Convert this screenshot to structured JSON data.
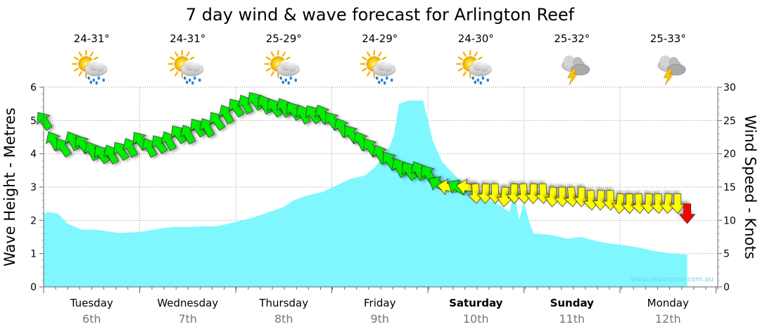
{
  "chart_data": {
    "type": "area",
    "title": "7 day wind & wave forecast for Arlington Reef",
    "ylabel_left": "Wave Height - Metres",
    "ylabel_right": "Wind Speed - Knots",
    "y_left_range": [
      0,
      6
    ],
    "y_right_range": [
      0,
      30
    ],
    "y_left_ticks": [
      "0",
      "1",
      "2",
      "3",
      "4",
      "5",
      "6"
    ],
    "y_right_ticks": [
      "0",
      "5",
      "10",
      "15",
      "20",
      "25",
      "30"
    ],
    "grid": true,
    "days": [
      {
        "name": "Tuesday",
        "date": "6th",
        "bold": false,
        "temp": "24-31°",
        "weather": "partly-cloudy-rain-icon"
      },
      {
        "name": "Wednesday",
        "date": "7th",
        "bold": false,
        "temp": "24-31°",
        "weather": "partly-cloudy-rain-icon"
      },
      {
        "name": "Thursday",
        "date": "8th",
        "bold": false,
        "temp": "25-29°",
        "weather": "partly-cloudy-rain-icon"
      },
      {
        "name": "Friday",
        "date": "9th",
        "bold": false,
        "temp": "24-29°",
        "weather": "partly-cloudy-rain-icon"
      },
      {
        "name": "Saturday",
        "date": "10th",
        "bold": true,
        "temp": "24-30°",
        "weather": "partly-cloudy-rain-icon"
      },
      {
        "name": "Sunday",
        "date": "11th",
        "bold": true,
        "temp": "25-32°",
        "weather": "thunderstorm-icon"
      },
      {
        "name": "Monday",
        "date": "12th",
        "bold": false,
        "temp": "25-33°",
        "weather": "thunderstorm-icon"
      }
    ],
    "wave_series": {
      "name": "Wave Height",
      "x_days": [
        0,
        0.05,
        0.15,
        0.25,
        0.4,
        0.55,
        0.7,
        0.8,
        1.0,
        1.2,
        1.35,
        1.5,
        1.65,
        1.8,
        2.0,
        2.2,
        2.35,
        2.5,
        2.6,
        2.75,
        2.9,
        3.05,
        3.2,
        3.35,
        3.45,
        3.55,
        3.6,
        3.65,
        3.7,
        3.8,
        3.9,
        3.95,
        4.0,
        4.05,
        4.15,
        4.3,
        4.45,
        4.6,
        4.75,
        4.8,
        4.85,
        4.9,
        4.95,
        5.0,
        5.05,
        5.1,
        5.15,
        5.3,
        5.45,
        5.6,
        5.75,
        5.9,
        6.05,
        6.2,
        6.35,
        6.55,
        6.7
      ],
      "heights": [
        2.2,
        2.25,
        2.2,
        1.9,
        1.72,
        1.72,
        1.65,
        1.62,
        1.65,
        1.75,
        1.8,
        1.8,
        1.82,
        1.82,
        1.95,
        2.1,
        2.25,
        2.4,
        2.6,
        2.75,
        2.85,
        3.05,
        3.25,
        3.35,
        3.6,
        4.0,
        4.2,
        4.6,
        5.5,
        5.6,
        5.6,
        5.6,
        5.0,
        4.4,
        3.75,
        3.3,
        2.95,
        2.65,
        2.45,
        2.35,
        2.25,
        2.9,
        2.0,
        2.6,
        2.0,
        1.6,
        1.6,
        1.55,
        1.45,
        1.5,
        1.38,
        1.3,
        1.25,
        1.18,
        1.08,
        1.0,
        0.97
      ]
    },
    "wind_series": {
      "name": "Wind Speed",
      "x_days": [
        0,
        0.1,
        0.2,
        0.3,
        0.4,
        0.5,
        0.6,
        0.7,
        0.8,
        0.9,
        1.0,
        1.1,
        1.2,
        1.3,
        1.4,
        1.5,
        1.6,
        1.7,
        1.8,
        1.9,
        2.0,
        2.1,
        2.2,
        2.3,
        2.4,
        2.5,
        2.6,
        2.7,
        2.8,
        2.9,
        3.0,
        3.1,
        3.2,
        3.3,
        3.4,
        3.5,
        3.6,
        3.7,
        3.8,
        3.9,
        4.0,
        4.1,
        4.2,
        4.3,
        4.4,
        4.5,
        4.6,
        4.7,
        4.8,
        4.9,
        5.0,
        5.1,
        5.2,
        5.3,
        5.4,
        5.5,
        5.6,
        5.7,
        5.8,
        5.9,
        6.0,
        6.1,
        6.2,
        6.3,
        6.4,
        6.5,
        6.6,
        6.7
      ],
      "speeds": [
        25,
        22,
        21,
        22,
        21.5,
        20.5,
        20,
        20,
        20.5,
        21,
        22,
        21,
        21.5,
        22,
        23,
        23,
        24,
        24,
        25,
        26,
        27,
        27.5,
        28,
        27.5,
        27,
        27,
        26.5,
        26,
        26,
        26,
        25,
        24,
        23,
        22,
        21,
        20,
        19,
        18,
        17.5,
        17.5,
        17,
        15.5,
        15,
        15,
        15,
        14,
        14,
        14,
        13.5,
        14,
        14,
        14,
        14,
        13.5,
        13.5,
        13.5,
        13.5,
        13,
        13,
        13,
        12.5,
        12.5,
        12.5,
        12.5,
        12.5,
        12.5,
        12.5,
        11
      ],
      "colors": [
        "#00ee00",
        "#ffff00",
        "#ff0000"
      ]
    },
    "credit": "www.seabreeze.com.au"
  }
}
